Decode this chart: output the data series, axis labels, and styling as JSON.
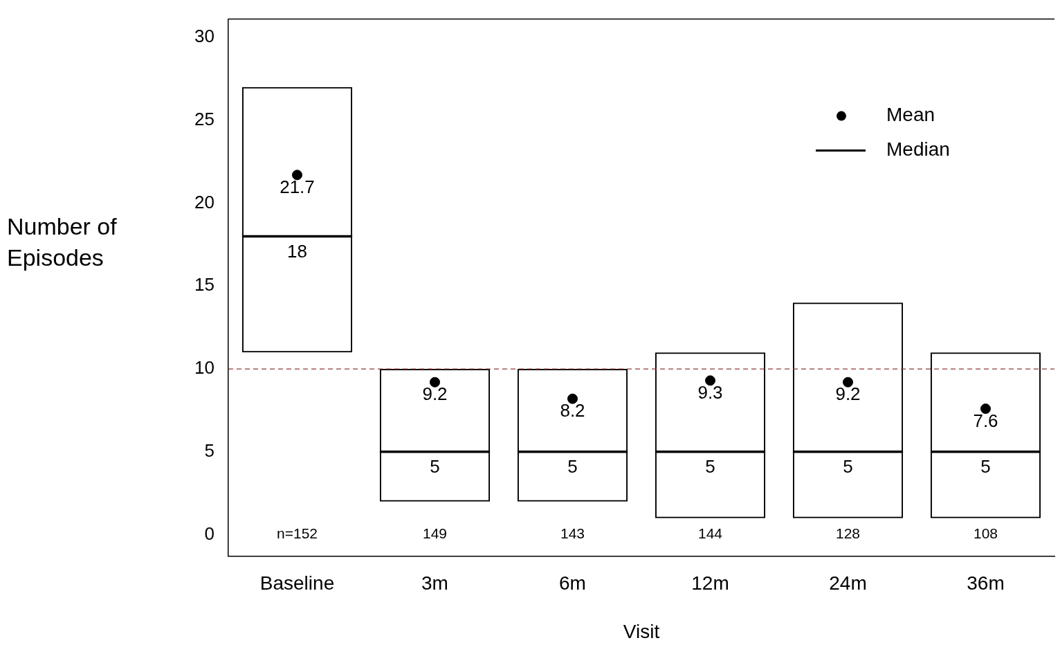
{
  "chart_data": {
    "type": "box",
    "xlabel": "Visit",
    "ylabel": "Number of Episodes",
    "categories": [
      "Baseline",
      "3m",
      "6m",
      "12m",
      "24m",
      "36m"
    ],
    "ylim": [
      -1.3,
      31.1
    ],
    "yticks": [
      0,
      5,
      10,
      15,
      20,
      25,
      30
    ],
    "grid": false,
    "legend": "top right",
    "data_labels": true,
    "series": [
      {
        "name": "Median",
        "color": "#000000",
        "value_labels": [
          "18",
          "5",
          "5",
          "5",
          "5",
          "5"
        ],
        "boxes": [
          {
            "low": 11,
            "q1": 11,
            "median": 18,
            "q3": 27,
            "high": 27
          },
          {
            "low": 2,
            "q1": 2,
            "median": 5,
            "q3": 10,
            "high": 10
          },
          {
            "low": 2,
            "q1": 2,
            "median": 5,
            "q3": 10,
            "high": 10
          },
          {
            "low": 1,
            "q1": 1,
            "median": 5,
            "q3": 11,
            "high": 11
          },
          {
            "low": 1,
            "q1": 1,
            "median": 5,
            "q3": 14,
            "high": 14
          },
          {
            "low": 1,
            "q1": 1,
            "median": 5,
            "q3": 11,
            "high": 11
          }
        ]
      },
      {
        "type": "scatter",
        "name": "Mean",
        "color": "#000000",
        "marker": "circle",
        "x": [
          "Baseline",
          "3m",
          "6m",
          "12m",
          "24m",
          "36m"
        ],
        "values": [
          21.7,
          9.2,
          8.2,
          9.3,
          9.2,
          7.6
        ]
      }
    ],
    "ref_lines": [
      {
        "axis": "y",
        "value": 10,
        "color": "#8b3a3a",
        "line_style": "dashed"
      }
    ],
    "annotations": [
      "n=152",
      "149",
      "143",
      "144",
      "128",
      "108"
    ]
  }
}
